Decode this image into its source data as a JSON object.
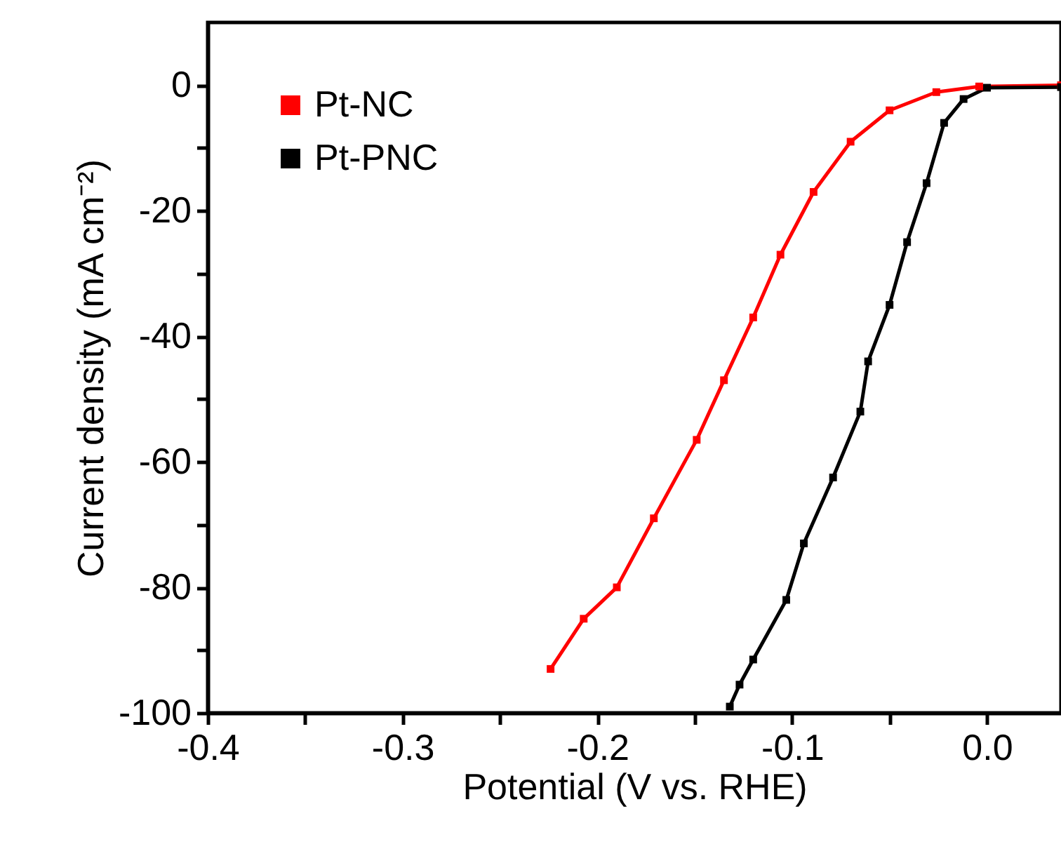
{
  "chart_data": {
    "type": "line",
    "xlabel": "Potential (V vs. RHE)",
    "ylabel": "Current density (mA cm⁻²)",
    "xlim": [
      -0.4,
      0.038
    ],
    "ylim": [
      -100,
      10
    ],
    "xticks": [
      -0.4,
      {
        "value": -0.35,
        "label": null
      },
      -0.3,
      {
        "value": -0.25,
        "label": null
      },
      -0.2,
      {
        "value": -0.15,
        "label": null
      },
      -0.1,
      {
        "value": -0.05,
        "label": null
      },
      {
        "value": 0,
        "label": "0.0"
      }
    ],
    "yticks": [
      -100,
      {
        "value": -90,
        "label": null
      },
      -80,
      {
        "value": -70,
        "label": null
      },
      -60,
      {
        "value": -50,
        "label": null
      },
      -40,
      {
        "value": -30,
        "label": null
      },
      -20,
      {
        "value": -10,
        "label": null
      },
      0
    ],
    "marker": "square",
    "line_style": "solid",
    "legend": "top left",
    "grid": false,
    "series": [
      {
        "name": "Pt-NC",
        "color": "#ff0000",
        "x": [
          -0.224,
          -0.207,
          -0.19,
          -0.171,
          -0.149,
          -0.135,
          -0.12,
          -0.106,
          -0.089,
          -0.07,
          -0.05,
          -0.026,
          -0.004,
          0.038
        ],
        "values": [
          -93,
          -85,
          -80,
          -69,
          -56.5,
          -47,
          -37,
          -27,
          -17,
          -9,
          -4,
          -1.1,
          -0.2,
          0
        ]
      },
      {
        "name": "Pt-PNC",
        "color": "#000000",
        "x": [
          -0.132,
          -0.127,
          -0.12,
          -0.103,
          -0.094,
          -0.079,
          -0.065,
          -0.061,
          -0.05,
          -0.041,
          -0.031,
          -0.022,
          -0.012,
          0,
          0.038
        ],
        "values": [
          -99,
          -95.5,
          -91.5,
          -82,
          -73,
          -62.5,
          -52,
          -44,
          -35,
          -25,
          -15.6,
          -6,
          -2.2,
          -0.4,
          -0.3
        ]
      }
    ]
  }
}
